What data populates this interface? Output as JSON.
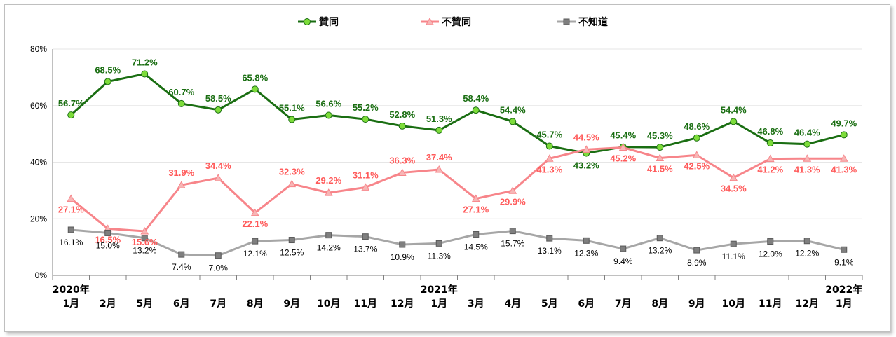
{
  "chart_data": {
    "type": "line",
    "categories": [
      [
        "2020年",
        "1月"
      ],
      [
        "",
        "2月"
      ],
      [
        "",
        "5月"
      ],
      [
        "",
        "6月"
      ],
      [
        "",
        "7月"
      ],
      [
        "",
        "8月"
      ],
      [
        "",
        "9月"
      ],
      [
        "",
        "10月"
      ],
      [
        "",
        "11月"
      ],
      [
        "",
        "12月"
      ],
      [
        "2021年",
        "1月"
      ],
      [
        "",
        "3月"
      ],
      [
        "",
        "4月"
      ],
      [
        "",
        "5月"
      ],
      [
        "",
        "6月"
      ],
      [
        "",
        "7月"
      ],
      [
        "",
        "8月"
      ],
      [
        "",
        "9月"
      ],
      [
        "",
        "10月"
      ],
      [
        "",
        "11月"
      ],
      [
        "",
        "12月"
      ],
      [
        "2022年",
        "1月"
      ]
    ],
    "series": [
      {
        "name": "贊同",
        "color": "#1a6e12",
        "marker": "circle",
        "marker_color": "#7ddc3a",
        "values": [
          56.7,
          68.5,
          71.2,
          60.7,
          58.5,
          65.8,
          55.1,
          56.6,
          55.2,
          52.8,
          51.3,
          58.4,
          54.4,
          45.7,
          43.2,
          45.4,
          45.3,
          48.6,
          54.4,
          46.8,
          46.4,
          49.7
        ],
        "labels": [
          "56.7%",
          "68.5%",
          "71.2%",
          "60.7%",
          "58.5%",
          "65.8%",
          "55.1%",
          "56.6%",
          "55.2%",
          "52.8%",
          "51.3%",
          "58.4%",
          "54.4%",
          "45.7%",
          "43.2%",
          "45.4%",
          "45.3%",
          "48.6%",
          "54.4%",
          "46.8%",
          "46.4%",
          "49.7%"
        ]
      },
      {
        "name": "不贊同",
        "color": "#f7858a",
        "marker": "triangle",
        "marker_color": "#f7b6b6",
        "values": [
          27.1,
          16.5,
          15.6,
          31.9,
          34.4,
          22.1,
          32.3,
          29.2,
          31.1,
          36.3,
          37.4,
          27.1,
          29.9,
          41.3,
          44.5,
          45.2,
          41.5,
          42.5,
          34.5,
          41.2,
          41.3,
          41.3
        ],
        "labels": [
          "27.1%",
          "16.5%",
          "15.6%",
          "31.9%",
          "34.4%",
          "22.1%",
          "32.3%",
          "29.2%",
          "31.1%",
          "36.3%",
          "37.4%",
          "27.1%",
          "29.9%",
          "41.3%",
          "44.5%",
          "45.2%",
          "41.5%",
          "42.5%",
          "34.5%",
          "41.2%",
          "41.3%",
          "41.3%"
        ]
      },
      {
        "name": "不知道",
        "color": "#a6a6a6",
        "marker": "square",
        "marker_color": "#7f7f7f",
        "values": [
          16.1,
          15.0,
          13.2,
          7.4,
          7.0,
          12.1,
          12.5,
          14.2,
          13.7,
          10.9,
          11.3,
          14.5,
          15.7,
          13.1,
          12.3,
          9.4,
          13.2,
          8.9,
          11.1,
          12.0,
          12.2,
          9.1
        ],
        "labels": [
          "16.1%",
          "15.0%",
          "13.2%",
          "7.4%",
          "7.0%",
          "12.1%",
          "12.5%",
          "14.2%",
          "13.7%",
          "10.9%",
          "11.3%",
          "14.5%",
          "15.7%",
          "13.1%",
          "12.3%",
          "9.4%",
          "13.2%",
          "8.9%",
          "11.1%",
          "12.0%",
          "12.2%",
          "9.1%"
        ]
      }
    ],
    "yaxis": {
      "min": 0,
      "max": 80,
      "ticks": [
        "0%",
        "20%",
        "40%",
        "60%",
        "80%"
      ]
    },
    "grid": true,
    "legend": "top"
  }
}
